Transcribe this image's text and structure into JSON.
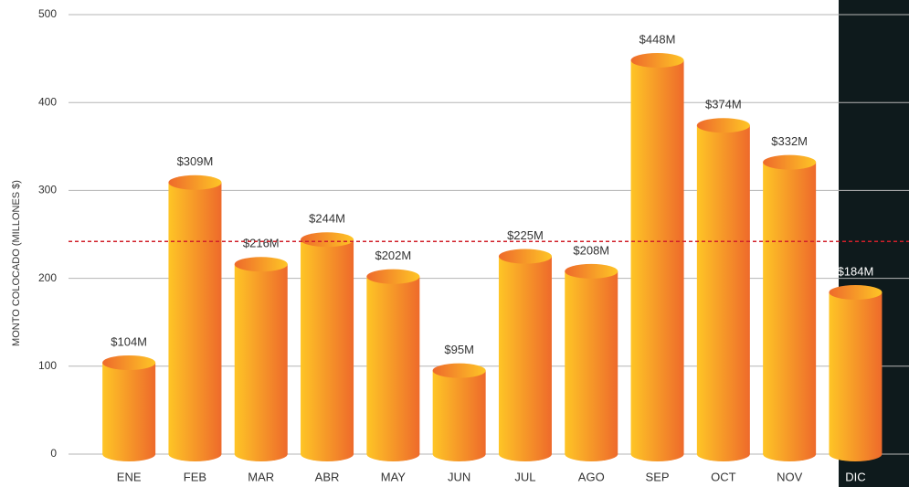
{
  "chart_data": {
    "type": "bar",
    "y_label": "MONTO COLOCADO (MILLONES $)",
    "categories": [
      "ENE",
      "FEB",
      "MAR",
      "ABR",
      "MAY",
      "JUN",
      "JUL",
      "AGO",
      "SEP",
      "OCT",
      "NOV",
      "DIC"
    ],
    "values": [
      104,
      309,
      216,
      244,
      202,
      95,
      225,
      208,
      448,
      374,
      332,
      184
    ],
    "value_labels": [
      "$104M",
      "$309M",
      "$216M",
      "$244M",
      "$202M",
      "$95M",
      "$225M",
      "$208M",
      "$448M",
      "$374M",
      "$332M",
      "$184M"
    ],
    "colors": [
      "#fec526",
      "#ee6a2b"
    ],
    "ylim": [
      0,
      500
    ],
    "yticks": [
      0,
      100,
      200,
      300,
      400,
      500
    ],
    "grid": true,
    "reference_line": {
      "value": 242,
      "color": "#d0202a"
    }
  }
}
